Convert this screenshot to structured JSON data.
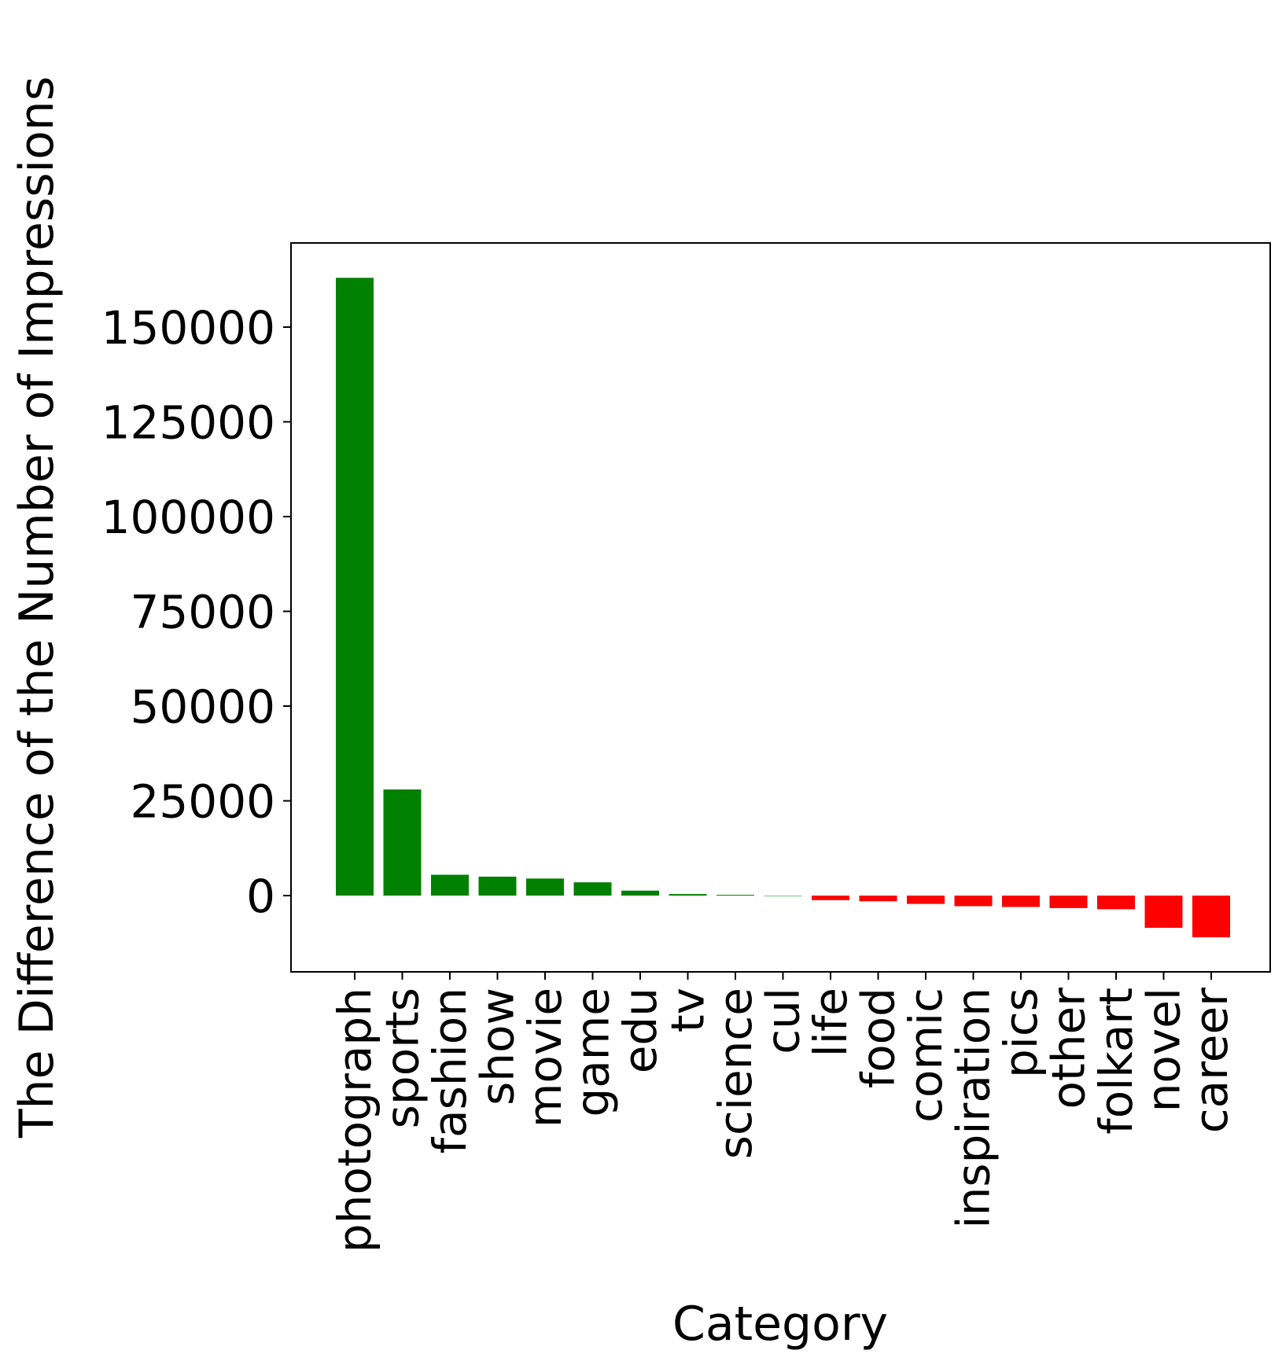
{
  "chart_data": {
    "type": "bar",
    "title": "",
    "xlabel": "Category",
    "ylabel": "The Difference of the Number of Impressions",
    "categories": [
      "photograph",
      "sports",
      "fashion",
      "show",
      "movie",
      "game",
      "edu",
      "tv",
      "science",
      "cul",
      "life",
      "food",
      "comic",
      "inspiration",
      "pics",
      "other",
      "folkart",
      "novel",
      "career"
    ],
    "values": [
      163000,
      28000,
      5500,
      5000,
      4500,
      3500,
      1300,
      400,
      200,
      0,
      -1200,
      -1500,
      -2200,
      -2800,
      -3000,
      -3300,
      -3600,
      -8500,
      -11000
    ],
    "ylim": [
      -20000,
      172500
    ],
    "yticks": [
      0,
      25000,
      50000,
      75000,
      100000,
      125000,
      150000
    ],
    "ytick_labels": [
      "0",
      "25000",
      "50000",
      "75000",
      "100000",
      "125000",
      "150000"
    ],
    "colors": {
      "positive": "#008000",
      "negative": "#ff0000"
    },
    "grid": false,
    "legend": "none"
  }
}
